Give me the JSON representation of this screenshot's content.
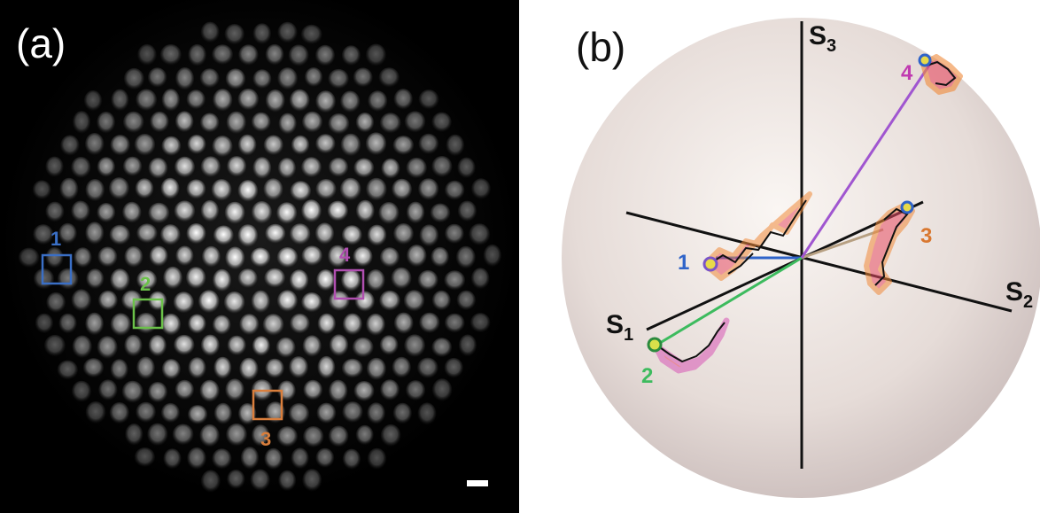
{
  "panel_a": {
    "label": "(a)",
    "rois": [
      {
        "id": "1",
        "color": "#3a6fc6"
      },
      {
        "id": "2",
        "color": "#6cc24a"
      },
      {
        "id": "3",
        "color": "#d97e3c"
      },
      {
        "id": "4",
        "color": "#b04fb0"
      }
    ]
  },
  "panel_b": {
    "label": "(b)",
    "axes": [
      {
        "id": "s1",
        "label": "S",
        "sub": "1"
      },
      {
        "id": "s2",
        "label": "S",
        "sub": "2"
      },
      {
        "id": "s3",
        "label": "S",
        "sub": "3"
      }
    ],
    "points": [
      {
        "id": "1",
        "color": "#2f63c9"
      },
      {
        "id": "2",
        "color": "#3dbb5e"
      },
      {
        "id": "3",
        "color": "#d9772f"
      },
      {
        "id": "4",
        "color": "#c03ab0"
      }
    ]
  }
}
